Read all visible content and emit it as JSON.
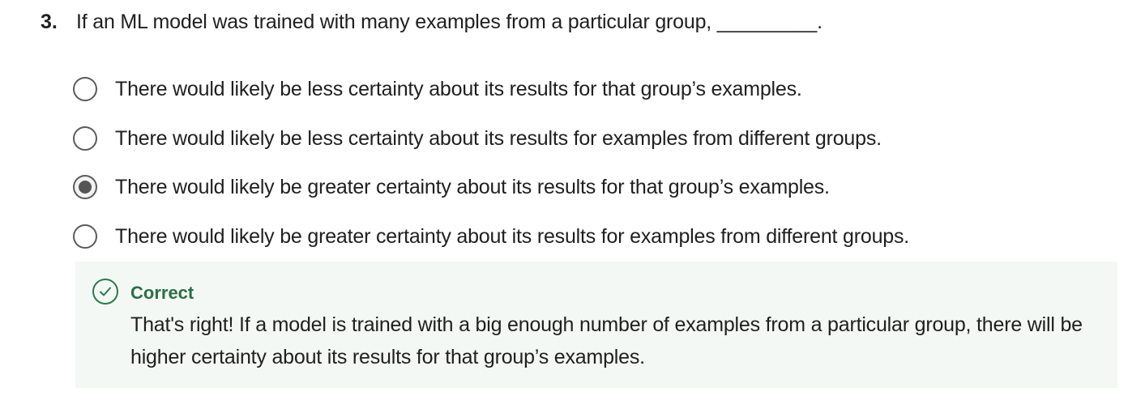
{
  "question": {
    "number": "3.",
    "text": "If an ML model was trained with many examples from a particular group, _________."
  },
  "options": [
    {
      "label": "There would likely be less certainty about its results for that group’s examples.",
      "selected": false
    },
    {
      "label": "There would likely be less certainty about its results for examples from different groups.",
      "selected": false
    },
    {
      "label": "There would likely be greater certainty about its results for that group’s examples.",
      "selected": true
    },
    {
      "label": "There would likely be greater certainty about its results for examples from different groups.",
      "selected": false
    }
  ],
  "feedback": {
    "icon": "check-circle-icon",
    "status": "Correct",
    "message": "That's right! If a model is trained with a big enough number of examples from a particular group, there will be higher certainty about its results for that group’s examples.",
    "colors": {
      "accent": "#2c6e46",
      "background": "#f4f8f5"
    }
  }
}
